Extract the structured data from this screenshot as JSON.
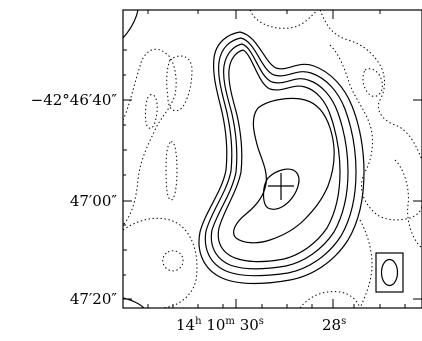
{
  "chart_data": {
    "type": "contour",
    "title": "",
    "xlabel": "",
    "ylabel": "",
    "y_ticks": [
      {
        "dec": "-42 46 40",
        "label": "−42°46′40″"
      },
      {
        "dec": "-42 47 00",
        "label": "47′00″"
      },
      {
        "dec": "-42 47 20",
        "label": "47′20″"
      }
    ],
    "x_ticks": [
      {
        "ra": "14 10 30",
        "h": "14",
        "m": "10",
        "s": "30",
        "label_h": "h",
        "label_m": "m",
        "label_s": "s"
      },
      {
        "ra": "14 10 28",
        "s": "28",
        "label_s": "s"
      }
    ],
    "ylim_dec": [
      "-42 47 21",
      "-42 46 27"
    ],
    "xlim_ra_s": [
      31.6,
      26.8
    ],
    "contour_levels": [
      "negative (dotted)",
      "positive (solid) x5"
    ],
    "markers": [
      {
        "type": "cross",
        "ra_s": 29.8,
        "dec": "-42 46 57"
      }
    ],
    "beam": {
      "shape": "ellipse",
      "position": "bottom-right"
    },
    "grid": false,
    "legend": "none"
  }
}
